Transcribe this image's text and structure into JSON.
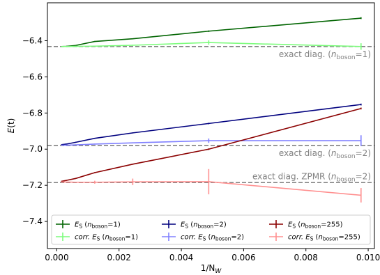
{
  "chart_data": {
    "type": "line",
    "xlabel_main": "1/N",
    "xlabel_sub": "W",
    "ylabel_main": "E",
    "ylabel_paren": "(t)",
    "xlim": [
      -0.0003,
      0.0102
    ],
    "ylim": [
      -7.55,
      -6.19
    ],
    "xticks": [
      0.0,
      0.002,
      0.004,
      0.006,
      0.008,
      0.01
    ],
    "xtick_labels": [
      "0.000",
      "0.002",
      "0.004",
      "0.006",
      "0.008",
      "0.010"
    ],
    "yticks": [
      -7.4,
      -7.2,
      -7.0,
      -6.8,
      -6.6,
      -6.4
    ],
    "ytick_labels": [
      "−7.4",
      "−7.2",
      "−7.0",
      "−6.8",
      "−6.6",
      "−6.4"
    ],
    "grid": false,
    "legend_position": "lower center",
    "reference_lines": [
      {
        "y": -6.432,
        "text_pre": "exact diag. (",
        "var": "n",
        "sub": "boson",
        "text_post": "=1)",
        "color": "#808080"
      },
      {
        "y": -6.98,
        "text_pre": "exact diag. (",
        "var": "n",
        "sub": "boson",
        "text_post": "=2)",
        "color": "#808080"
      },
      {
        "y": -7.185,
        "text_pre": "exact diag. ZPMR (",
        "var": "n",
        "sub": "boson",
        "text_post": "=2)",
        "color": "#808080"
      }
    ],
    "series": [
      {
        "legend_pre": "E",
        "legend_pre_sub": "S",
        "legend_paren": " (",
        "legend_var": "n",
        "legend_var_sub": "boson",
        "legend_post": "=1)",
        "color": "#006400",
        "x": [
          0.000153,
          0.000305,
          0.00061,
          0.00122,
          0.00244,
          0.00488,
          0.00977
        ],
        "y": [
          -6.432,
          -6.431,
          -6.426,
          -6.404,
          -6.389,
          -6.347,
          -6.275
        ],
        "err": [
          0,
          0,
          0,
          0,
          0,
          0.004,
          0.005
        ]
      },
      {
        "legend_pre": "corr. E",
        "legend_pre_sub": "S",
        "legend_paren": " (",
        "legend_var": "n",
        "legend_var_sub": "boson",
        "legend_post": "=1)",
        "color": "#7cfc7c",
        "x": [
          0.000153,
          0.000305,
          0.00061,
          0.00122,
          0.00244,
          0.00488,
          0.00977
        ],
        "y": [
          -6.432,
          -6.432,
          -6.431,
          -6.43,
          -6.425,
          -6.41,
          -6.432
        ],
        "err": [
          0,
          0,
          0,
          0,
          0,
          0.012,
          0.018
        ]
      },
      {
        "legend_pre": "E",
        "legend_pre_sub": "S",
        "legend_paren": " (",
        "legend_var": "n",
        "legend_var_sub": "boson",
        "legend_post": "=2)",
        "color": "#00007f",
        "x": [
          0.000153,
          0.000305,
          0.00061,
          0.00122,
          0.00244,
          0.00488,
          0.00977
        ],
        "y": [
          -6.975,
          -6.972,
          -6.962,
          -6.94,
          -6.91,
          -6.858,
          -6.753
        ],
        "err": [
          0,
          0,
          0,
          0,
          0,
          0.004,
          0.005
        ]
      },
      {
        "legend_pre": "corr. E",
        "legend_pre_sub": "S",
        "legend_paren": " (",
        "legend_var": "n",
        "legend_var_sub": "boson",
        "legend_post": "=2)",
        "color": "#8080ff",
        "x": [
          0.000153,
          0.000305,
          0.00061,
          0.00122,
          0.00244,
          0.00488,
          0.00977
        ],
        "y": [
          -6.978,
          -6.978,
          -6.976,
          -6.972,
          -6.965,
          -6.953,
          -6.953
        ],
        "err": [
          0,
          0,
          0,
          0,
          0,
          0.012,
          0.03
        ]
      },
      {
        "legend_pre": "E",
        "legend_pre_sub": "S",
        "legend_paren": " (",
        "legend_var": "n",
        "legend_var_sub": "boson",
        "legend_post": "=255)",
        "color": "#8b0000",
        "x": [
          0.000153,
          0.000305,
          0.00061,
          0.00122,
          0.00244,
          0.00488,
          0.00977
        ],
        "y": [
          -7.178,
          -7.173,
          -7.162,
          -7.13,
          -7.083,
          -7.0,
          -6.775
        ],
        "err": [
          0,
          0,
          0,
          0,
          0,
          0.004,
          0.005
        ]
      },
      {
        "legend_pre": "corr. E",
        "legend_pre_sub": "S",
        "legend_paren": " (",
        "legend_var": "n",
        "legend_var_sub": "boson",
        "legend_post": "=255)",
        "color": "#ff9090",
        "x": [
          0.000153,
          0.000305,
          0.00061,
          0.00122,
          0.00244,
          0.00488,
          0.00977
        ],
        "y": [
          -7.182,
          -7.182,
          -7.183,
          -7.183,
          -7.181,
          -7.18,
          -7.255
        ],
        "err": [
          0,
          0,
          0,
          0.008,
          0.018,
          0.07,
          0.04
        ]
      }
    ]
  }
}
